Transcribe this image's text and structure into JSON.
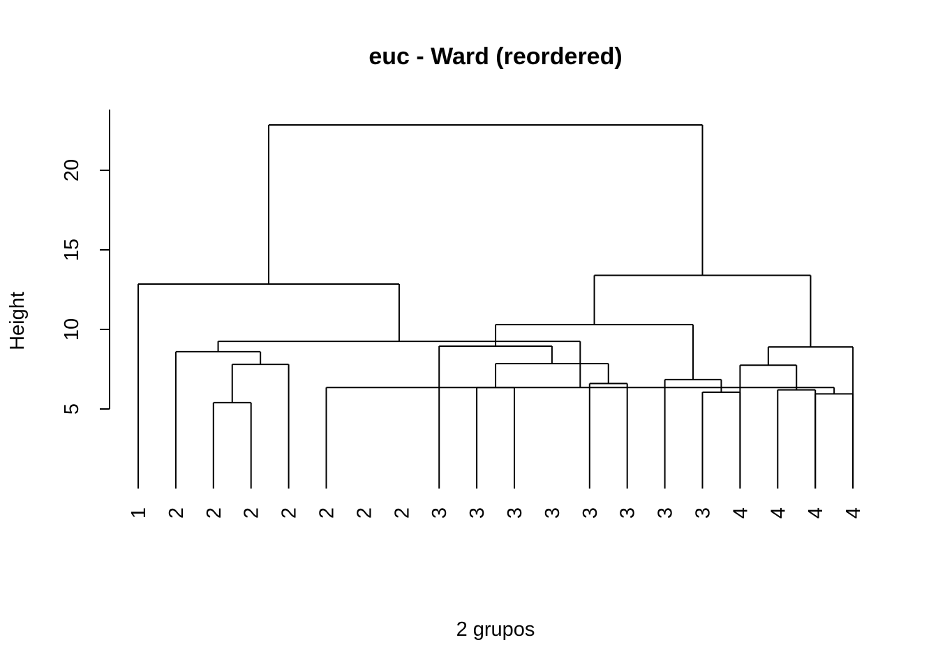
{
  "chart_data": {
    "type": "dendrogram",
    "title": "euc - Ward (reordered)",
    "xlabel": "2 grupos",
    "ylabel": "Height",
    "ylim": [
      0,
      23
    ],
    "yticks": [
      "5",
      "10",
      "15",
      "20"
    ],
    "leaves": [
      "1",
      "2",
      "2",
      "2",
      "2",
      "2",
      "2",
      "2",
      "3",
      "3",
      "3",
      "3",
      "3",
      "3",
      "3",
      "3",
      "4",
      "4",
      "4",
      "4"
    ],
    "merges": [
      {
        "left": 3,
        "right": 4,
        "height": 5.4
      },
      {
        "left": 19,
        "right": 20,
        "height": 5.95
      },
      {
        "left": 16,
        "right": 17,
        "height": 6.05
      },
      {
        "left": 10,
        "right": 11,
        "height": 6.35
      },
      {
        "left": 6,
        "right": -2,
        "height": 6.35
      },
      {
        "left": 13,
        "right": 14,
        "height": 6.6
      },
      {
        "left": 15,
        "right": -3,
        "height": 6.85
      },
      {
        "left": 18,
        "right": 19,
        "height": 6.2
      },
      {
        "left": 17,
        "right": -8,
        "height": 7.75
      },
      {
        "left": 5,
        "right": -1,
        "height": 7.8
      },
      {
        "left": -4,
        "right": -6,
        "height": 7.85
      },
      {
        "left": 2,
        "right": -10,
        "height": 8.6
      },
      {
        "left": 9,
        "right": -11,
        "height": 8.95
      },
      {
        "left": -9,
        "right": 20,
        "height": 8.9
      },
      {
        "left": -12,
        "right": -5,
        "height": 9.25
      },
      {
        "left": -13,
        "right": -7,
        "height": 10.3
      },
      {
        "left": 1,
        "right": -15,
        "height": 12.85
      },
      {
        "left": -16,
        "right": -14,
        "height": 13.4
      },
      {
        "left": -17,
        "right": -18,
        "height": 22.85
      }
    ]
  }
}
